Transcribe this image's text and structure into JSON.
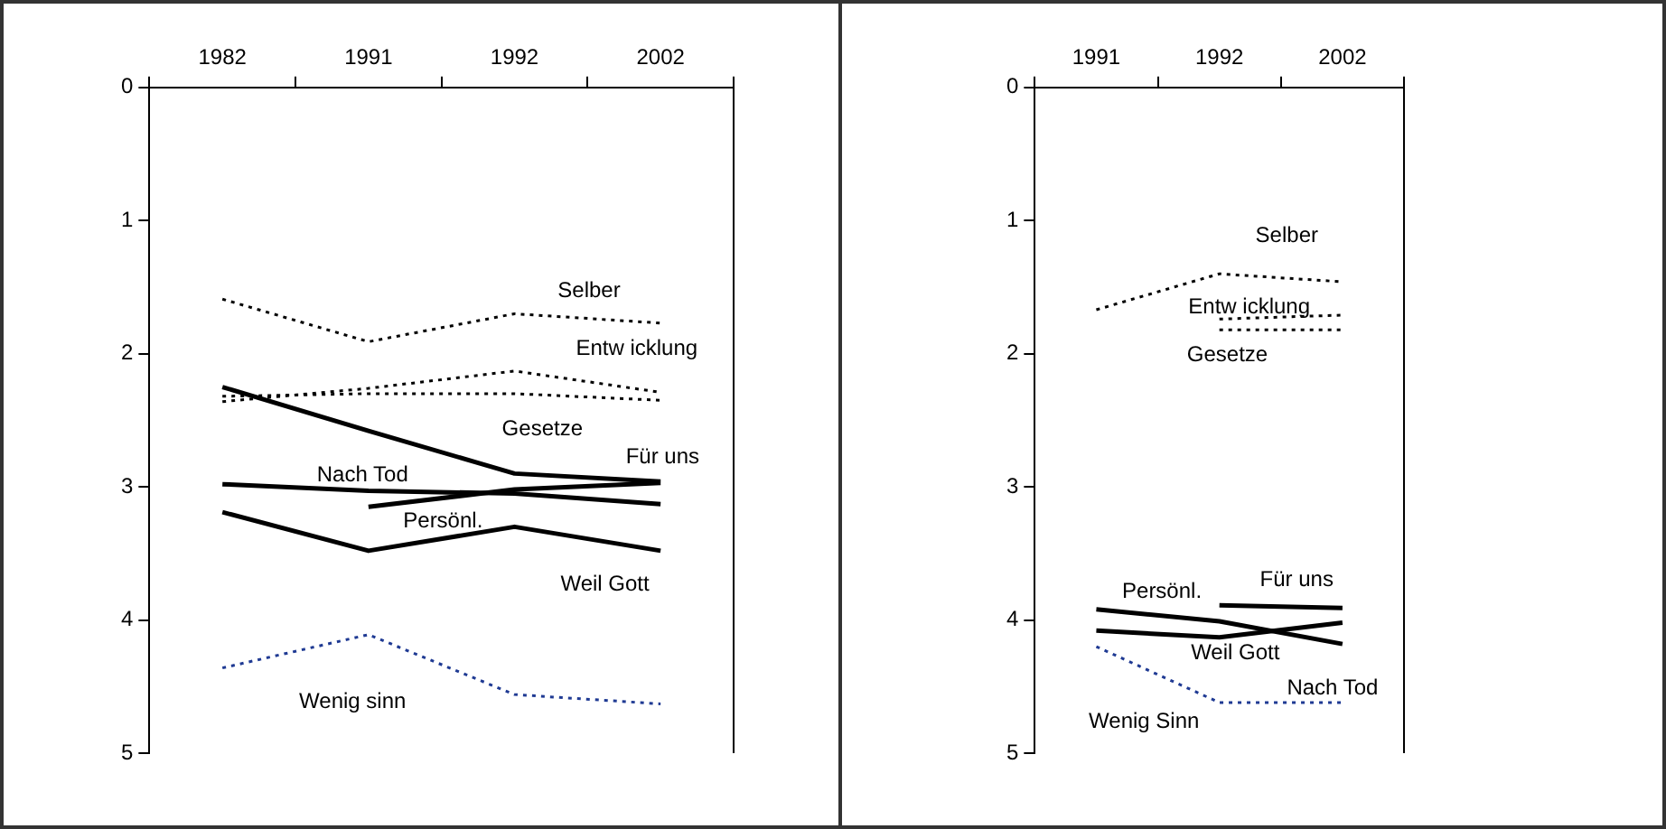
{
  "chart_data": [
    {
      "type": "line",
      "categories": [
        "1982",
        "1991",
        "1992",
        "2002"
      ],
      "ylim": [
        5,
        0
      ],
      "yticks": [
        0,
        1,
        2,
        3,
        4,
        5
      ],
      "grid": false,
      "legend": false,
      "marker": "none",
      "series": [
        {
          "name": "Selber",
          "color": "#000000",
          "line_style": "dotted",
          "values": [
            1.59,
            1.91,
            1.7,
            1.77
          ]
        },
        {
          "name": "Entw icklung",
          "color": "#000000",
          "line_style": "dotted",
          "values": [
            2.36,
            2.26,
            2.13,
            2.29
          ]
        },
        {
          "name": "Gesetze",
          "color": "#000000",
          "line_style": "dotted",
          "values": [
            2.32,
            2.3,
            2.3,
            2.35
          ]
        },
        {
          "name": "Für uns",
          "color": "#000000",
          "line_style": "solid",
          "values": [
            2.25,
            2.58,
            2.9,
            2.96
          ]
        },
        {
          "name": "Nach Tod",
          "color": "#000000",
          "line_style": "solid",
          "values": [
            2.98,
            3.03,
            3.05,
            3.13
          ]
        },
        {
          "name": "Persönl.",
          "color": "#000000",
          "line_style": "solid",
          "values": [
            null,
            3.15,
            3.02,
            2.97
          ]
        },
        {
          "name": "Weil Gott",
          "color": "#000000",
          "line_style": "solid",
          "values": [
            3.19,
            3.48,
            3.3,
            3.48
          ]
        },
        {
          "name": "Wenig sinn",
          "color": "#1f3a93",
          "line_style": "dotted",
          "values": [
            4.36,
            4.11,
            4.56,
            4.63
          ]
        }
      ]
    },
    {
      "type": "line",
      "categories": [
        "1991",
        "1992",
        "2002"
      ],
      "ylim": [
        5,
        0
      ],
      "yticks": [
        0,
        1,
        2,
        3,
        4,
        5
      ],
      "grid": false,
      "legend": false,
      "marker": "none",
      "series": [
        {
          "name": "Selber",
          "color": "#000000",
          "line_style": "dotted",
          "values": [
            1.67,
            1.4,
            1.46
          ]
        },
        {
          "name": "Entw icklung",
          "color": "#000000",
          "line_style": "dotted",
          "values": [
            null,
            1.74,
            1.71
          ]
        },
        {
          "name": "Gesetze",
          "color": "#000000",
          "line_style": "dotted",
          "values": [
            null,
            1.82,
            1.82
          ]
        },
        {
          "name": "Persönl.",
          "color": "#000000",
          "line_style": "solid",
          "values": [
            3.92,
            4.01,
            4.18
          ]
        },
        {
          "name": "Für uns",
          "color": "#000000",
          "line_style": "solid",
          "values": [
            null,
            3.89,
            3.91
          ]
        },
        {
          "name": "Weil Gott",
          "color": "#000000",
          "line_style": "solid",
          "values": [
            4.08,
            4.13,
            4.02
          ]
        },
        {
          "name": "Wenig Sinn",
          "color": "#1f3a93",
          "line_style": "dotted",
          "values": [
            4.2,
            4.62,
            4.62
          ]
        }
      ],
      "annotations": [
        "Nach Tod"
      ]
    }
  ]
}
